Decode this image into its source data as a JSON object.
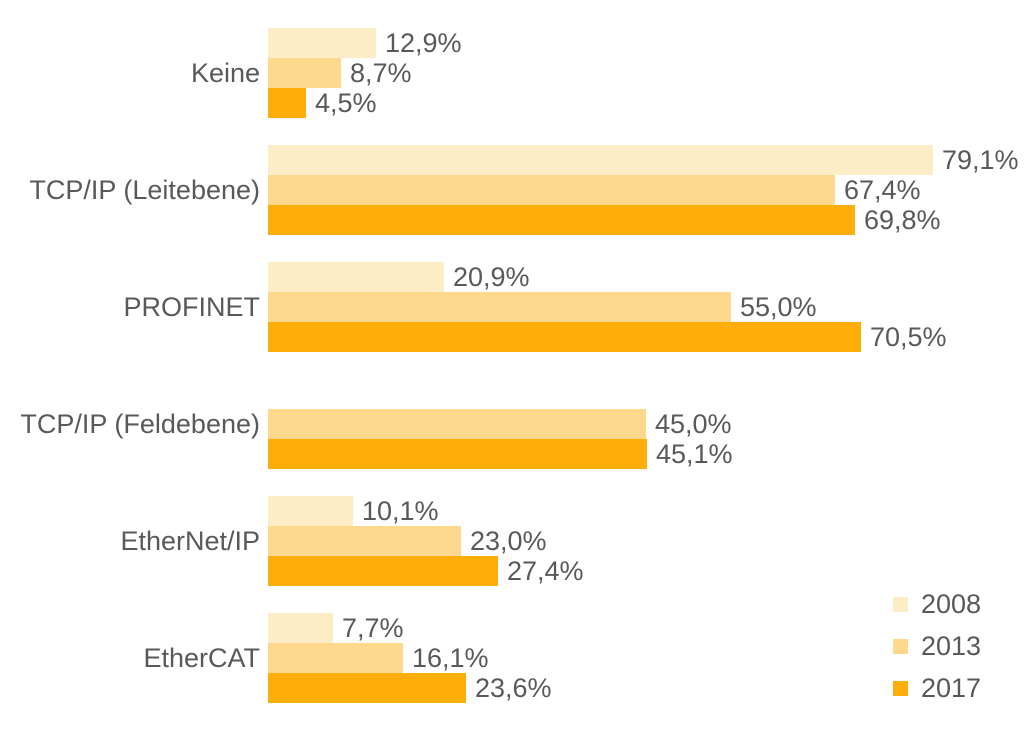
{
  "chart": {
    "background_color": "#FFFFFF",
    "text_color": "#595959"
  },
  "chart_data": {
    "type": "bar",
    "orientation": "horizontal",
    "title": "",
    "xlabel": "",
    "ylabel": "",
    "xlim": [
      0,
      100
    ],
    "grid": false,
    "value_suffix": "%",
    "decimal_separator": ",",
    "categories": [
      "Keine",
      "TCP/IP (Leitebene)",
      "PROFINET",
      "TCP/IP (Feldebene)",
      "EtherNet/IP",
      "EtherCAT"
    ],
    "series": [
      {
        "name": "2008",
        "color": "#FDEDC7",
        "values": [
          12.9,
          79.1,
          20.9,
          null,
          10.1,
          7.7
        ],
        "labels": [
          "12,9%",
          "79,1%",
          "20,9%",
          null,
          "10,1%",
          "7,7%"
        ]
      },
      {
        "name": "2013",
        "color": "#FDD88D",
        "values": [
          8.7,
          67.4,
          55.0,
          45.0,
          23.0,
          16.1
        ],
        "labels": [
          "8,7%",
          "67,4%",
          "55,0%",
          "45,0%",
          "23,0%",
          "16,1%"
        ]
      },
      {
        "name": "2017",
        "color": "#FFAD08",
        "values": [
          4.5,
          69.8,
          70.5,
          45.1,
          27.4,
          23.6
        ],
        "labels": [
          "4,5%",
          "69,8%",
          "70,5%",
          "45,1%",
          "27,4%",
          "23,6%"
        ]
      }
    ],
    "legend": {
      "position": "bottom-right",
      "entries": [
        {
          "label": "2008",
          "color": "#FDEDC7"
        },
        {
          "label": "2013",
          "color": "#FDD88D"
        },
        {
          "label": "2017",
          "color": "#FFAD08"
        }
      ]
    }
  }
}
